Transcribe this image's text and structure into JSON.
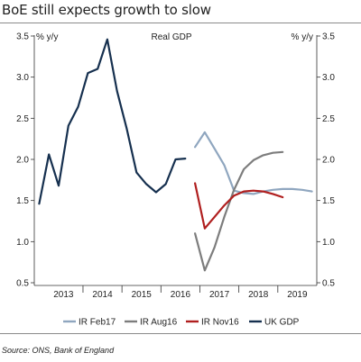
{
  "page": {
    "title": "BoE still expects growth to slow",
    "source": "Source: ONS, Bank of England"
  },
  "chart_data": {
    "type": "line",
    "title": "Real GDP",
    "ylabel_left": "% y/y",
    "ylabel_right": "% y/y",
    "ylim": [
      0.5,
      3.5
    ],
    "yticks": [
      "3.5",
      "3.0",
      "2.5",
      "2.0",
      "1.5",
      "1.0",
      "0.5"
    ],
    "ytick_values": [
      3.5,
      3.0,
      2.5,
      2.0,
      1.5,
      1.0,
      0.5
    ],
    "xlim": [
      2012.75,
      2020.0
    ],
    "xticks": [
      {
        "label": "2013",
        "pos": 2013.5
      },
      {
        "label": "2014",
        "pos": 2014.5
      },
      {
        "label": "2015",
        "pos": 2015.5
      },
      {
        "label": "2016",
        "pos": 2016.5
      },
      {
        "label": "2017",
        "pos": 2017.5
      },
      {
        "label": "2018",
        "pos": 2018.5
      },
      {
        "label": "2019",
        "pos": 2019.5
      }
    ],
    "year_dividers": [
      2014,
      2015,
      2016,
      2017,
      2018,
      2019
    ],
    "grid": false,
    "legend_position": "bottom",
    "series": [
      {
        "name": "IR Feb17",
        "color": "#8fa6bf",
        "x": [
          2016.875,
          2017.125,
          2017.375,
          2017.625,
          2017.875,
          2018.125,
          2018.375,
          2018.625,
          2018.875,
          2019.125,
          2019.375,
          2019.625,
          2019.875
        ],
        "y": [
          2.15,
          2.33,
          2.13,
          1.93,
          1.62,
          1.59,
          1.58,
          1.61,
          1.63,
          1.64,
          1.64,
          1.63,
          1.61
        ]
      },
      {
        "name": "IR Aug16",
        "color": "#7d7d7d",
        "x": [
          2016.875,
          2017.125,
          2017.375,
          2017.625,
          2017.875,
          2018.125,
          2018.375,
          2018.625,
          2018.875,
          2019.125
        ],
        "y": [
          1.1,
          0.65,
          0.93,
          1.3,
          1.63,
          1.88,
          1.99,
          2.05,
          2.08,
          2.09
        ]
      },
      {
        "name": "IR Nov16",
        "color": "#b01f1f",
        "x": [
          2016.875,
          2017.125,
          2017.375,
          2017.625,
          2017.875,
          2018.125,
          2018.375,
          2018.625,
          2018.875,
          2019.125
        ],
        "y": [
          1.71,
          1.16,
          1.3,
          1.44,
          1.56,
          1.61,
          1.62,
          1.61,
          1.58,
          1.54
        ]
      },
      {
        "name": "UK GDP",
        "color": "#16304f",
        "x": [
          2012.875,
          2013.125,
          2013.375,
          2013.625,
          2013.875,
          2014.125,
          2014.375,
          2014.625,
          2014.875,
          2015.125,
          2015.375,
          2015.625,
          2015.875,
          2016.125,
          2016.375,
          2016.625
        ],
        "y": [
          1.46,
          2.06,
          1.68,
          2.41,
          2.64,
          3.05,
          3.1,
          3.46,
          2.83,
          2.37,
          1.84,
          1.7,
          1.6,
          1.7,
          2.0,
          2.01
        ]
      }
    ]
  }
}
